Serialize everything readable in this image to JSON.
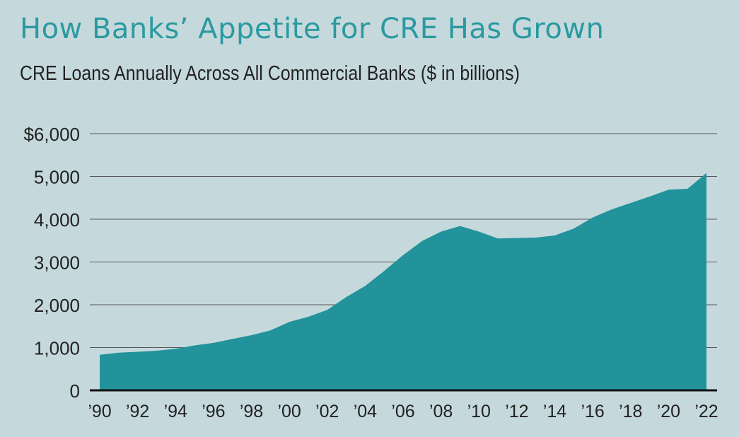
{
  "title": "How Banks’ Appetite for CRE Has Grown",
  "subtitle": "CRE Loans Annually Across All Commercial Banks ($ in billions)",
  "colors": {
    "area": "#22929b",
    "background": "#c5d9dd",
    "title": "#2b9aa0",
    "grid": "#555555"
  },
  "chart_data": {
    "type": "area",
    "title": "How Banks’ Appetite for CRE Has Grown",
    "subtitle": "CRE Loans Annually Across All Commercial Banks ($ in billions)",
    "xlabel": "",
    "ylabel": "",
    "ylim": [
      0,
      6000
    ],
    "yticks": [
      0,
      1000,
      2000,
      3000,
      4000,
      5000,
      6000
    ],
    "ytick_labels": [
      "0",
      "1,000",
      "2,000",
      "3,000",
      "4,000",
      "5,000",
      "$6,000"
    ],
    "xlim": [
      1990,
      2022
    ],
    "xticks": [
      1990,
      1992,
      1994,
      1996,
      1998,
      2000,
      2002,
      2004,
      2006,
      2008,
      2010,
      2012,
      2014,
      2016,
      2018,
      2020,
      2022
    ],
    "xtick_labels": [
      "’90",
      "’92",
      "’94",
      "’96",
      "’98",
      "’00",
      "’02",
      "’04",
      "’06",
      "’08",
      "’10",
      "’12",
      "’14",
      "’16",
      "’18",
      "’20",
      "’22"
    ],
    "grid": true,
    "x": [
      1990,
      1991,
      1992,
      1993,
      1994,
      1995,
      1996,
      1997,
      1998,
      1999,
      2000,
      2001,
      2002,
      2003,
      2004,
      2005,
      2006,
      2007,
      2008,
      2009,
      2010,
      2011,
      2012,
      2013,
      2014,
      2015,
      2016,
      2017,
      2018,
      2019,
      2020,
      2021,
      2022
    ],
    "values": [
      830,
      880,
      900,
      925,
      970,
      1050,
      1110,
      1200,
      1290,
      1400,
      1600,
      1720,
      1880,
      2180,
      2440,
      2790,
      3160,
      3490,
      3710,
      3840,
      3710,
      3550,
      3560,
      3570,
      3620,
      3780,
      4040,
      4230,
      4380,
      4530,
      4690,
      4710,
      5080
    ]
  }
}
